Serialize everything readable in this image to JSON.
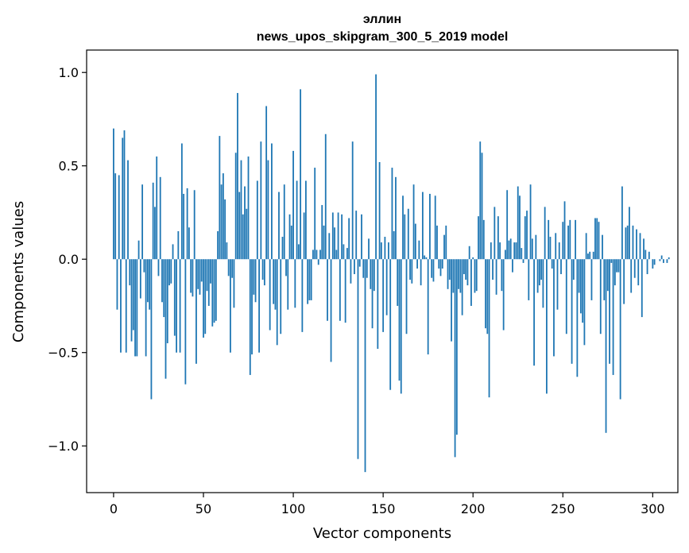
{
  "chart_data": {
    "type": "bar",
    "title": "эллин",
    "subtitle": "news_upos_skipgram_300_5_2019 model",
    "xlabel": "Vector components",
    "ylabel": "Components values",
    "xlim": [
      -15,
      314
    ],
    "ylim": [
      -1.25,
      1.12
    ],
    "xticks": [
      0,
      50,
      100,
      150,
      200,
      250,
      300
    ],
    "xtick_labels": [
      "0",
      "50",
      "100",
      "150",
      "200",
      "250",
      "300"
    ],
    "yticks": [
      -1.0,
      -0.5,
      0.0,
      0.5,
      1.0
    ],
    "ytick_labels": [
      "−1.0",
      "−0.5",
      "0.0",
      "0.5",
      "1.0"
    ],
    "bar_color": "#1f77b4",
    "grid": false,
    "legend": "none",
    "values": [
      0.7,
      0.46,
      -0.27,
      0.45,
      -0.5,
      0.65,
      0.69,
      -0.5,
      0.53,
      -0.14,
      -0.44,
      -0.38,
      -0.52,
      -0.52,
      0.1,
      -0.21,
      0.4,
      -0.07,
      -0.52,
      -0.23,
      -0.27,
      -0.75,
      0.41,
      0.28,
      0.55,
      -0.09,
      0.44,
      -0.23,
      -0.31,
      -0.64,
      -0.45,
      -0.14,
      -0.13,
      0.08,
      -0.41,
      -0.5,
      0.15,
      -0.5,
      0.62,
      0.35,
      -0.67,
      0.38,
      0.17,
      -0.18,
      -0.2,
      0.37,
      -0.56,
      -0.16,
      -0.19,
      -0.12,
      -0.42,
      -0.4,
      -0.17,
      -0.25,
      -0.13,
      -0.36,
      -0.34,
      -0.33,
      0.15,
      0.66,
      0.4,
      0.46,
      0.32,
      0.09,
      -0.09,
      -0.5,
      -0.1,
      -0.26,
      0.57,
      0.89,
      0.36,
      0.53,
      0.24,
      0.39,
      0.27,
      0.55,
      -0.62,
      -0.51,
      -0.19,
      -0.23,
      0.42,
      -0.5,
      0.63,
      -0.11,
      -0.14,
      0.82,
      0.53,
      -0.38,
      0.62,
      -0.24,
      -0.27,
      -0.46,
      0.36,
      -0.4,
      0.12,
      0.4,
      -0.09,
      -0.27,
      0.24,
      0.18,
      0.58,
      -0.26,
      0.42,
      0.08,
      0.91,
      -0.39,
      0.25,
      0.42,
      -0.24,
      -0.22,
      -0.22,
      0.05,
      0.49,
      0.05,
      -0.03,
      0.05,
      0.29,
      0.18,
      0.67,
      -0.33,
      0.14,
      -0.55,
      0.25,
      0.17,
      0.05,
      0.25,
      -0.33,
      0.24,
      0.08,
      -0.34,
      0.06,
      0.22,
      -0.13,
      0.63,
      -0.08,
      0.26,
      -1.07,
      -0.04,
      0.24,
      -0.1,
      -1.14,
      -0.1,
      0.11,
      -0.16,
      -0.37,
      -0.17,
      0.99,
      -0.48,
      0.52,
      0.09,
      -0.39,
      0.12,
      -0.3,
      0.09,
      -0.7,
      0.49,
      0.15,
      0.44,
      -0.25,
      -0.65,
      -0.72,
      0.34,
      0.24,
      -0.4,
      0.27,
      -0.11,
      -0.13,
      0.4,
      0.19,
      -0.05,
      0.1,
      -0.14,
      0.36,
      0.02,
      0.01,
      -0.51,
      0.35,
      -0.1,
      -0.12,
      0.34,
      0.18,
      -0.05,
      -0.09,
      -0.05,
      0.13,
      0.18,
      -0.16,
      -0.11,
      -0.44,
      -0.18,
      -1.06,
      -0.94,
      -0.16,
      -0.18,
      -0.3,
      -0.08,
      -0.11,
      -0.14,
      0.07,
      -0.25,
      0.01,
      -0.18,
      -0.17,
      0.23,
      0.63,
      0.57,
      0.21,
      -0.37,
      -0.4,
      -0.74,
      0.09,
      -0.11,
      0.28,
      -0.19,
      0.23,
      0.09,
      -0.17,
      -0.38,
      0.05,
      0.37,
      0.1,
      0.11,
      -0.07,
      0.09,
      0.09,
      0.39,
      0.34,
      0.06,
      -0.02,
      0.23,
      0.26,
      -0.22,
      0.4,
      0.11,
      -0.57,
      0.13,
      -0.18,
      -0.14,
      -0.11,
      -0.26,
      0.28,
      -0.72,
      0.21,
      0.12,
      -0.05,
      -0.52,
      0.14,
      -0.27,
      0.09,
      -0.08,
      0.2,
      0.31,
      -0.4,
      0.18,
      0.21,
      -0.56,
      -0.11,
      0.21,
      -0.63,
      -0.18,
      -0.29,
      -0.34,
      -0.46,
      0.14,
      0.03,
      0.04,
      -0.22,
      0.04,
      0.22,
      0.22,
      0.2,
      -0.4,
      0.13,
      -0.22,
      -0.93,
      -0.17,
      -0.56,
      -0.02,
      -0.62,
      -0.14,
      -0.07,
      -0.07,
      -0.75,
      0.39,
      -0.24,
      0.17,
      0.18,
      0.28,
      -0.18,
      0.18,
      -0.1,
      0.16,
      -0.14,
      0.14,
      -0.31,
      0.11,
      0.05,
      -0.08,
      0.04,
      0.0,
      -0.05,
      -0.03,
      0.0,
      0.0,
      -0.01,
      0.02,
      -0.02,
      0.0,
      -0.02,
      0.01
    ]
  }
}
